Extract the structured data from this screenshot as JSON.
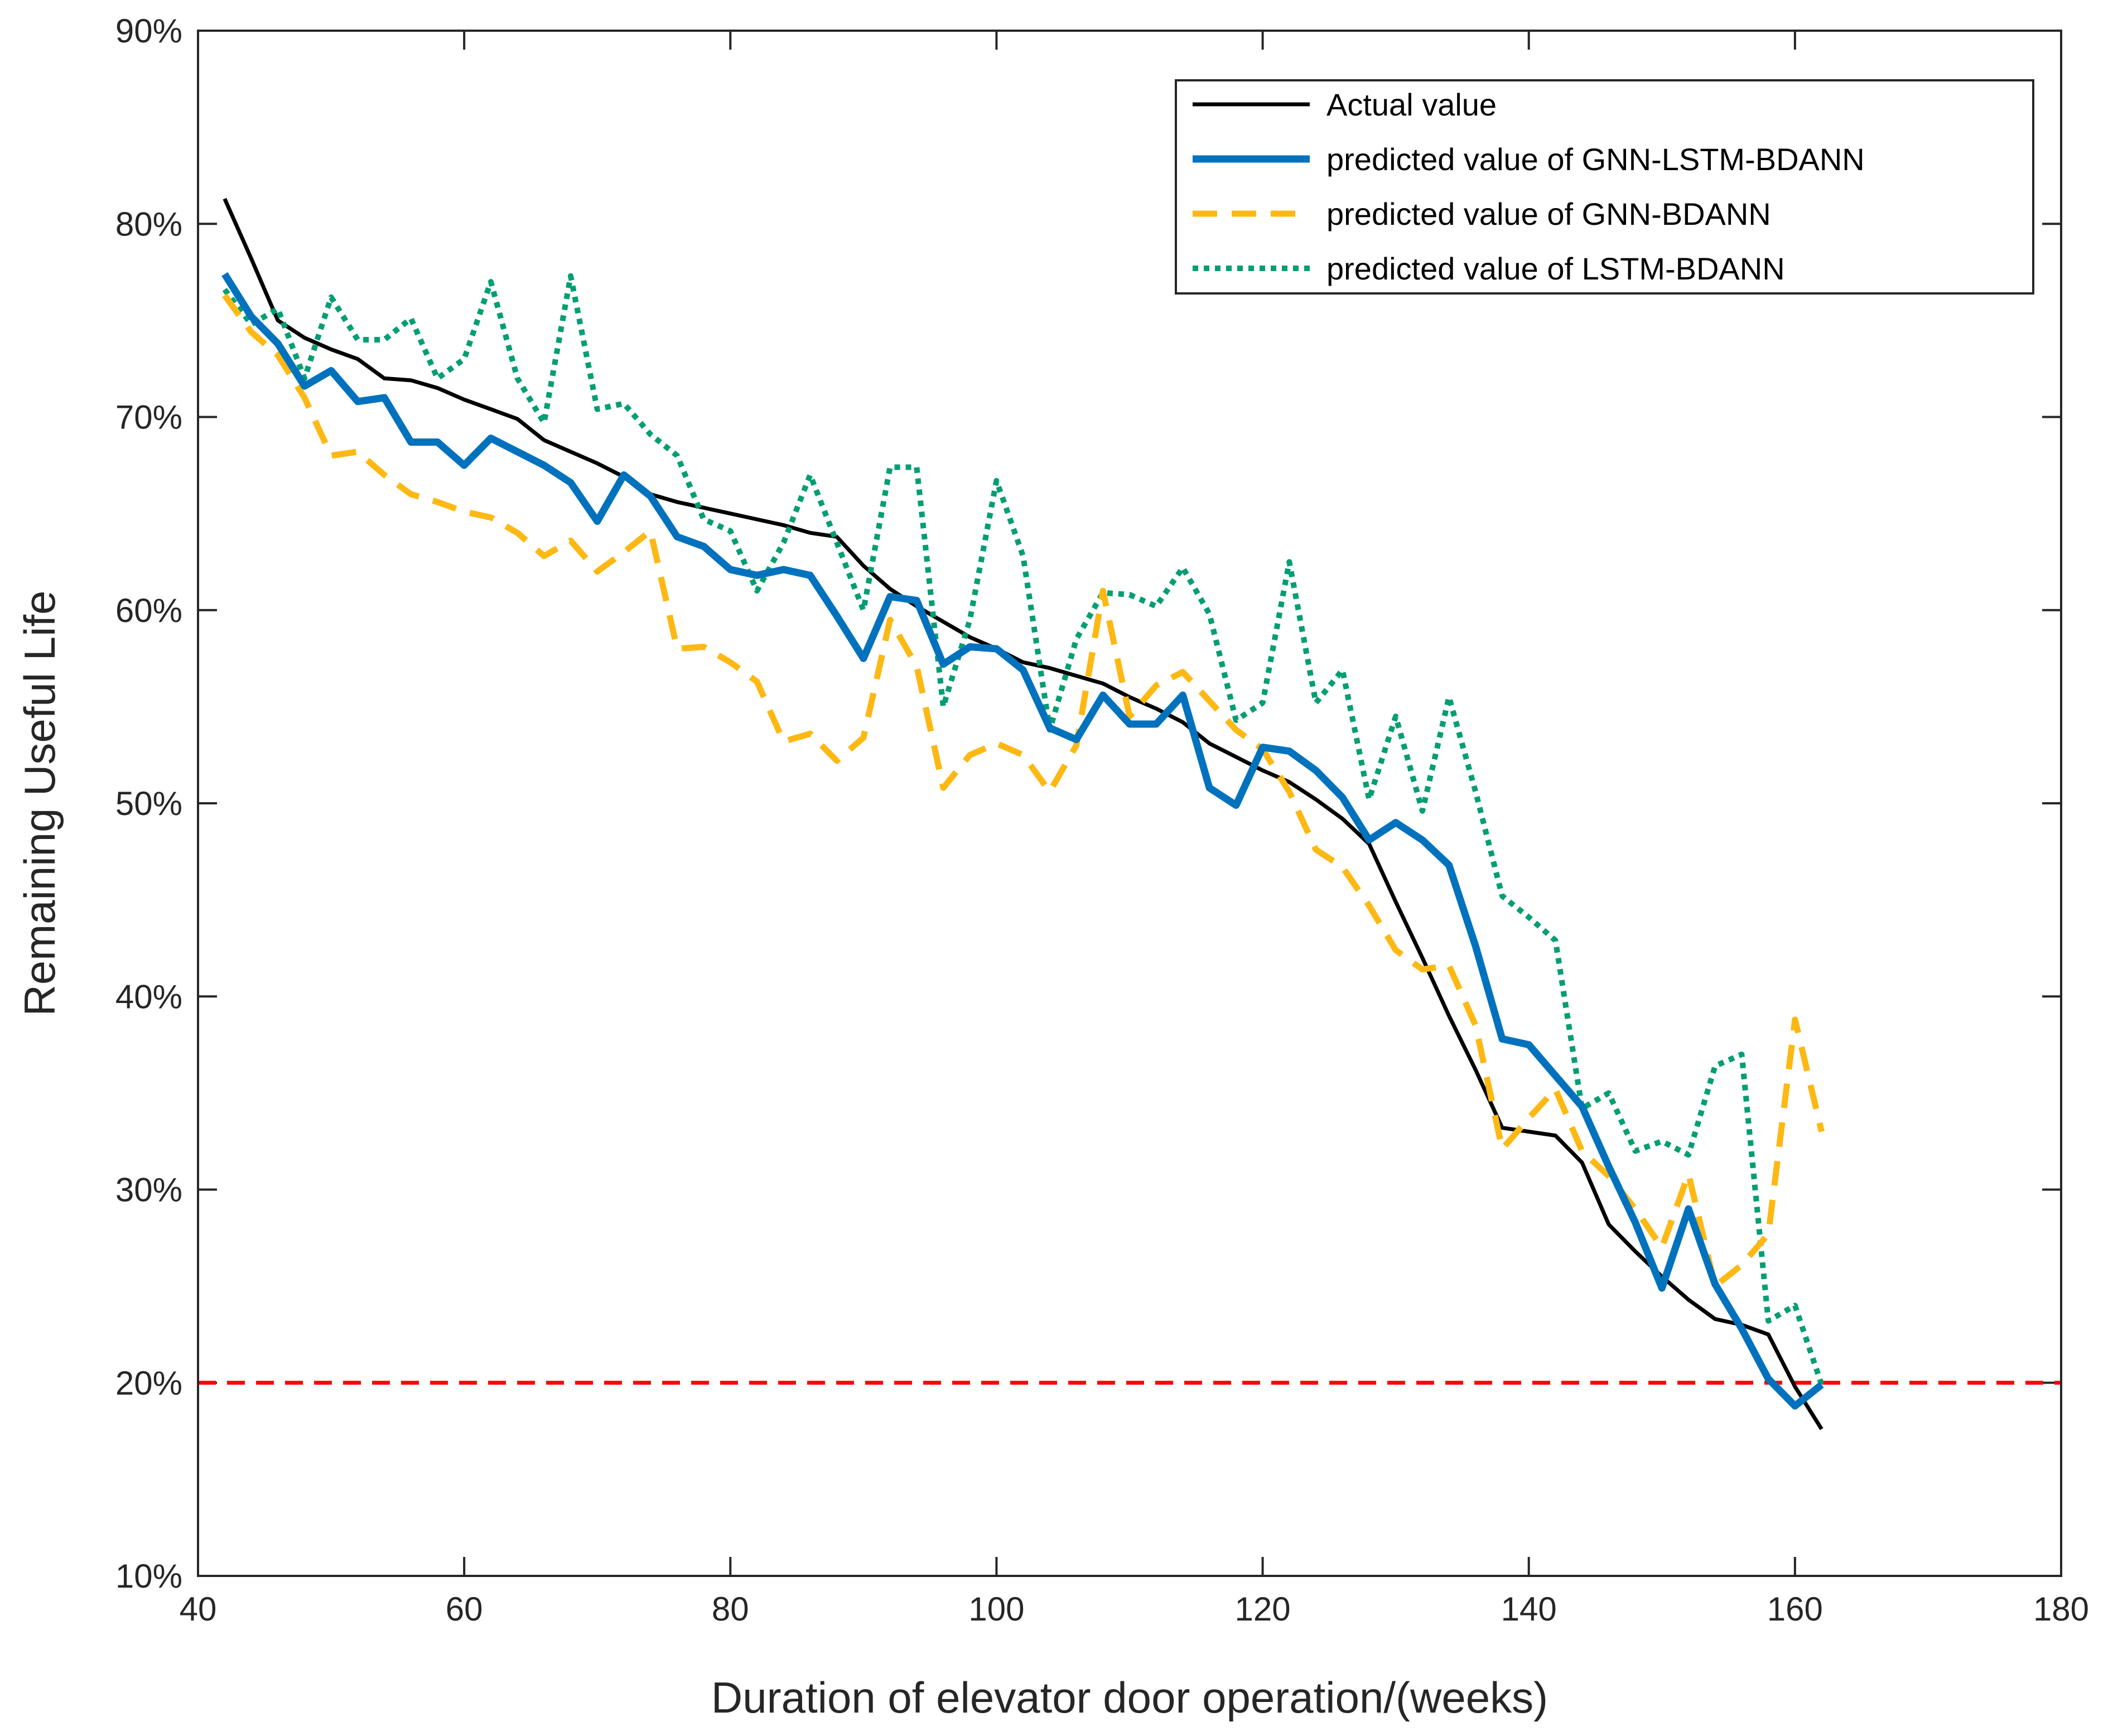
{
  "chart_data": {
    "type": "line",
    "xlabel": "Duration of elevator door operation/(weeks)",
    "ylabel": "Remaining Useful Life",
    "xlim": [
      40,
      180
    ],
    "ylim": [
      10,
      90
    ],
    "x_ticks": [
      40,
      60,
      80,
      100,
      120,
      140,
      160,
      180
    ],
    "y_ticks": [
      10,
      20,
      30,
      40,
      50,
      60,
      70,
      80,
      90
    ],
    "x_tick_labels": [
      "40",
      "60",
      "80",
      "100",
      "120",
      "140",
      "160",
      "180"
    ],
    "y_tick_labels": [
      "10%",
      "20%",
      "30%",
      "40%",
      "50%",
      "60%",
      "70%",
      "80%",
      "90%"
    ],
    "grid": false,
    "legend_position": "top-right",
    "threshold": {
      "value": 20,
      "color": "#ff0000",
      "style": "dashed"
    },
    "series": [
      {
        "name": "Actual value",
        "color": "#000000",
        "style": "solid",
        "points": [
          [
            42,
            81.3
          ],
          [
            44,
            78.2
          ],
          [
            46,
            75.0
          ],
          [
            48,
            74.1
          ],
          [
            50,
            73.5
          ],
          [
            52,
            73.0
          ],
          [
            54,
            72.0
          ],
          [
            56,
            71.9
          ],
          [
            58,
            71.5
          ],
          [
            60,
            70.9
          ],
          [
            62,
            70.4
          ],
          [
            64,
            69.9
          ],
          [
            66,
            68.8
          ],
          [
            68,
            68.2
          ],
          [
            70,
            67.6
          ],
          [
            72,
            66.9
          ],
          [
            74,
            66.0
          ],
          [
            76,
            65.6
          ],
          [
            78,
            65.3
          ],
          [
            80,
            65.0
          ],
          [
            82,
            64.7
          ],
          [
            84,
            64.4
          ],
          [
            86,
            64.0
          ],
          [
            88,
            63.8
          ],
          [
            90,
            62.3
          ],
          [
            92,
            61.1
          ],
          [
            94,
            60.2
          ],
          [
            96,
            59.4
          ],
          [
            98,
            58.6
          ],
          [
            100,
            58.0
          ],
          [
            102,
            57.3
          ],
          [
            104,
            57.0
          ],
          [
            106,
            56.6
          ],
          [
            108,
            56.2
          ],
          [
            110,
            55.5
          ],
          [
            112,
            54.9
          ],
          [
            114,
            54.2
          ],
          [
            116,
            53.1
          ],
          [
            118,
            52.4
          ],
          [
            120,
            51.7
          ],
          [
            122,
            51.1
          ],
          [
            124,
            50.2
          ],
          [
            126,
            49.2
          ],
          [
            128,
            47.9
          ],
          [
            130,
            44.9
          ],
          [
            132,
            42.0
          ],
          [
            134,
            39.0
          ],
          [
            136,
            36.2
          ],
          [
            138,
            33.2
          ],
          [
            140,
            33.0
          ],
          [
            142,
            32.8
          ],
          [
            144,
            31.4
          ],
          [
            146,
            28.2
          ],
          [
            148,
            26.8
          ],
          [
            150,
            25.5
          ],
          [
            152,
            24.3
          ],
          [
            154,
            23.3
          ],
          [
            156,
            23.0
          ],
          [
            158,
            22.5
          ],
          [
            160,
            19.8
          ],
          [
            162,
            17.6
          ]
        ]
      },
      {
        "name": "predicted value of GNN-LSTM-BDANN",
        "color": "#0072bd",
        "style": "solid",
        "points": [
          [
            42,
            77.4
          ],
          [
            44,
            75.2
          ],
          [
            46,
            73.8
          ],
          [
            48,
            71.6
          ],
          [
            50,
            72.4
          ],
          [
            52,
            70.8
          ],
          [
            54,
            71.0
          ],
          [
            56,
            68.7
          ],
          [
            58,
            68.7
          ],
          [
            60,
            67.5
          ],
          [
            62,
            68.9
          ],
          [
            64,
            68.2
          ],
          [
            66,
            67.5
          ],
          [
            68,
            66.6
          ],
          [
            70,
            64.6
          ],
          [
            72,
            67.0
          ],
          [
            74,
            65.9
          ],
          [
            76,
            63.8
          ],
          [
            78,
            63.3
          ],
          [
            80,
            62.1
          ],
          [
            82,
            61.8
          ],
          [
            84,
            62.1
          ],
          [
            86,
            61.8
          ],
          [
            88,
            59.7
          ],
          [
            90,
            57.5
          ],
          [
            92,
            60.7
          ],
          [
            94,
            60.5
          ],
          [
            96,
            57.2
          ],
          [
            98,
            58.1
          ],
          [
            100,
            58.0
          ],
          [
            102,
            56.9
          ],
          [
            104,
            53.9
          ],
          [
            106,
            53.3
          ],
          [
            108,
            55.6
          ],
          [
            110,
            54.1
          ],
          [
            112,
            54.1
          ],
          [
            114,
            55.6
          ],
          [
            116,
            50.8
          ],
          [
            118,
            49.9
          ],
          [
            120,
            52.9
          ],
          [
            122,
            52.7
          ],
          [
            124,
            51.7
          ],
          [
            126,
            50.3
          ],
          [
            128,
            48.1
          ],
          [
            130,
            49.0
          ],
          [
            132,
            48.1
          ],
          [
            134,
            46.8
          ],
          [
            136,
            42.6
          ],
          [
            138,
            37.8
          ],
          [
            140,
            37.5
          ],
          [
            142,
            35.9
          ],
          [
            144,
            34.3
          ],
          [
            146,
            31.2
          ],
          [
            148,
            28.3
          ],
          [
            150,
            24.9
          ],
          [
            152,
            29.0
          ],
          [
            154,
            25.1
          ],
          [
            156,
            22.8
          ],
          [
            158,
            20.2
          ],
          [
            160,
            18.8
          ],
          [
            162,
            19.9
          ]
        ]
      },
      {
        "name": "predicted value of GNN-BDANN",
        "color": "#fdb813",
        "style": "dashed",
        "points": [
          [
            42,
            76.3
          ],
          [
            44,
            74.4
          ],
          [
            46,
            73.2
          ],
          [
            48,
            71.0
          ],
          [
            50,
            68.0
          ],
          [
            52,
            68.2
          ],
          [
            54,
            67.0
          ],
          [
            56,
            66.0
          ],
          [
            58,
            65.6
          ],
          [
            60,
            65.1
          ],
          [
            62,
            64.8
          ],
          [
            64,
            64.0
          ],
          [
            66,
            62.8
          ],
          [
            68,
            63.6
          ],
          [
            70,
            62.0
          ],
          [
            72,
            63.0
          ],
          [
            74,
            64.1
          ],
          [
            76,
            58.0
          ],
          [
            78,
            58.1
          ],
          [
            80,
            57.3
          ],
          [
            82,
            56.3
          ],
          [
            84,
            53.2
          ],
          [
            86,
            53.6
          ],
          [
            88,
            52.2
          ],
          [
            90,
            53.4
          ],
          [
            92,
            59.5
          ],
          [
            94,
            57.1
          ],
          [
            96,
            50.8
          ],
          [
            98,
            52.5
          ],
          [
            100,
            53.1
          ],
          [
            102,
            52.5
          ],
          [
            104,
            50.6
          ],
          [
            106,
            53.0
          ],
          [
            108,
            61.0
          ],
          [
            110,
            54.5
          ],
          [
            112,
            56.1
          ],
          [
            114,
            56.8
          ],
          [
            116,
            55.3
          ],
          [
            118,
            53.8
          ],
          [
            120,
            52.8
          ],
          [
            122,
            50.6
          ],
          [
            124,
            47.6
          ],
          [
            126,
            46.7
          ],
          [
            128,
            44.7
          ],
          [
            130,
            42.4
          ],
          [
            132,
            41.4
          ],
          [
            134,
            41.6
          ],
          [
            136,
            38.5
          ],
          [
            138,
            32.1
          ],
          [
            140,
            33.7
          ],
          [
            142,
            35.2
          ],
          [
            144,
            32.0
          ],
          [
            146,
            30.7
          ],
          [
            148,
            29.0
          ],
          [
            150,
            27.0
          ],
          [
            152,
            30.8
          ],
          [
            154,
            25.0
          ],
          [
            156,
            26.1
          ],
          [
            158,
            27.7
          ],
          [
            160,
            38.8
          ],
          [
            162,
            33.0
          ]
        ]
      },
      {
        "name": "predicted value of LSTM-BDANN",
        "color": "#009e73",
        "style": "dotted",
        "points": [
          [
            42,
            76.6
          ],
          [
            44,
            74.8
          ],
          [
            46,
            75.6
          ],
          [
            48,
            72.0
          ],
          [
            50,
            76.2
          ],
          [
            52,
            74.0
          ],
          [
            54,
            74.0
          ],
          [
            56,
            75.1
          ],
          [
            58,
            72.0
          ],
          [
            60,
            73.0
          ],
          [
            62,
            77.0
          ],
          [
            64,
            72.0
          ],
          [
            66,
            69.7
          ],
          [
            68,
            77.3
          ],
          [
            70,
            70.4
          ],
          [
            72,
            70.7
          ],
          [
            74,
            69.1
          ],
          [
            76,
            68.0
          ],
          [
            78,
            64.7
          ],
          [
            80,
            64.1
          ],
          [
            82,
            61.0
          ],
          [
            84,
            63.5
          ],
          [
            86,
            67.0
          ],
          [
            88,
            63.5
          ],
          [
            90,
            60.0
          ],
          [
            92,
            67.4
          ],
          [
            94,
            67.4
          ],
          [
            96,
            55.0
          ],
          [
            98,
            59.5
          ],
          [
            100,
            66.7
          ],
          [
            102,
            62.8
          ],
          [
            104,
            53.8
          ],
          [
            106,
            58.5
          ],
          [
            108,
            60.9
          ],
          [
            110,
            60.8
          ],
          [
            112,
            60.2
          ],
          [
            114,
            62.2
          ],
          [
            116,
            59.8
          ],
          [
            118,
            54.3
          ],
          [
            120,
            55.2
          ],
          [
            122,
            62.5
          ],
          [
            124,
            55.2
          ],
          [
            126,
            56.9
          ],
          [
            128,
            50.2
          ],
          [
            130,
            54.5
          ],
          [
            132,
            49.6
          ],
          [
            134,
            55.5
          ],
          [
            136,
            50.6
          ],
          [
            138,
            45.2
          ],
          [
            140,
            44.1
          ],
          [
            142,
            42.9
          ],
          [
            144,
            34.2
          ],
          [
            146,
            35.0
          ],
          [
            148,
            32.0
          ],
          [
            150,
            32.5
          ],
          [
            152,
            31.8
          ],
          [
            154,
            36.4
          ],
          [
            156,
            37.0
          ],
          [
            158,
            23.2
          ],
          [
            160,
            24.0
          ],
          [
            162,
            19.9
          ]
        ]
      }
    ]
  }
}
